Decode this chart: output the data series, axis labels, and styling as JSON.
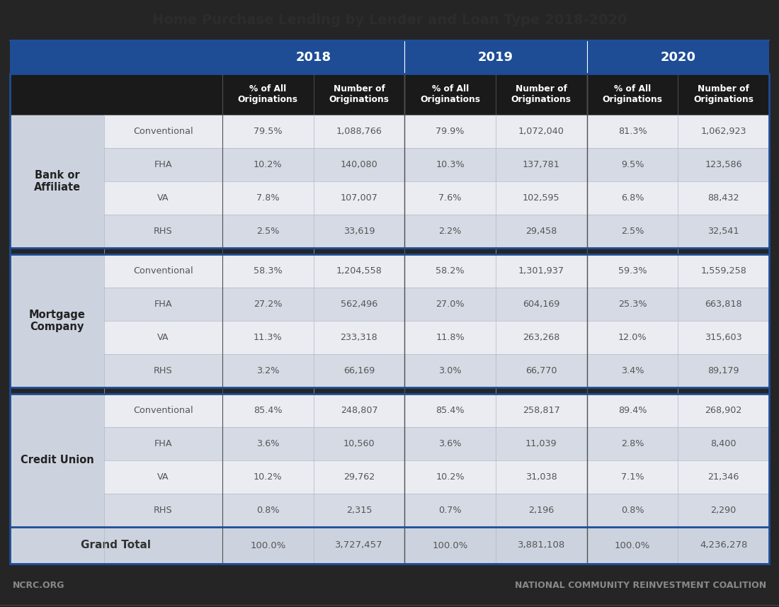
{
  "title": "Home Purchase Lending by Lender and Loan Type 2018-2020",
  "footer_left": "NCRC.ORG",
  "footer_right": "NATIONAL COMMUNITY REINVESTMENT COALITION",
  "years": [
    "2018",
    "2019",
    "2020"
  ],
  "col_headers": [
    "% of All\nOriginations",
    "Number of\nOriginations",
    "% of All\nOriginations",
    "Number of\nOriginations",
    "% of All\nOriginations",
    "Number of\nOriginations"
  ],
  "lender_groups": [
    "Bank or\nAffiliate",
    "Mortgage\nCompany",
    "Credit Union"
  ],
  "loan_types": [
    "Conventional",
    "FHA",
    "VA",
    "RHS"
  ],
  "data": {
    "Bank or\nAffiliate": {
      "Conventional": [
        "79.5%",
        "1,088,766",
        "79.9%",
        "1,072,040",
        "81.3%",
        "1,062,923"
      ],
      "FHA": [
        "10.2%",
        "140,080",
        "10.3%",
        "137,781",
        "9.5%",
        "123,586"
      ],
      "VA": [
        "7.8%",
        "107,007",
        "7.6%",
        "102,595",
        "6.8%",
        "88,432"
      ],
      "RHS": [
        "2.5%",
        "33,619",
        "2.2%",
        "29,458",
        "2.5%",
        "32,541"
      ]
    },
    "Mortgage\nCompany": {
      "Conventional": [
        "58.3%",
        "1,204,558",
        "58.2%",
        "1,301,937",
        "59.3%",
        "1,559,258"
      ],
      "FHA": [
        "27.2%",
        "562,496",
        "27.0%",
        "604,169",
        "25.3%",
        "663,818"
      ],
      "VA": [
        "11.3%",
        "233,318",
        "11.8%",
        "263,268",
        "12.0%",
        "315,603"
      ],
      "RHS": [
        "3.2%",
        "66,169",
        "3.0%",
        "66,770",
        "3.4%",
        "89,179"
      ]
    },
    "Credit Union": {
      "Conventional": [
        "85.4%",
        "248,807",
        "85.4%",
        "258,817",
        "89.4%",
        "268,902"
      ],
      "FHA": [
        "3.6%",
        "10,560",
        "3.6%",
        "11,039",
        "2.8%",
        "8,400"
      ],
      "VA": [
        "10.2%",
        "29,762",
        "10.2%",
        "31,038",
        "7.1%",
        "21,346"
      ],
      "RHS": [
        "0.8%",
        "2,315",
        "0.7%",
        "2,196",
        "0.8%",
        "2,290"
      ]
    }
  },
  "grand_total": [
    "100.0%",
    "3,727,457",
    "100.0%",
    "3,881,108",
    "100.0%",
    "4,236,278"
  ],
  "colors": {
    "bg_dark": "#252525",
    "year_header_bg": "#1e4d96",
    "year_header_text": "#ffffff",
    "col_header_bg": "#1a1a1a",
    "col_header_text": "#ffffff",
    "lender_bg": "#cdd3de",
    "lender_text": "#222222",
    "row_bg_0": "#eaecf2",
    "row_bg_1": "#d5dae4",
    "row_text": "#555555",
    "loan_type_text": "#555555",
    "grand_total_bg": "#cdd3de",
    "grand_total_text": "#555555",
    "grand_total_label": "#333333",
    "separator_line": "#1e4d96",
    "inner_line": "#b0b8c8",
    "footer_text": "#888888",
    "title_watermark": "#323232"
  }
}
